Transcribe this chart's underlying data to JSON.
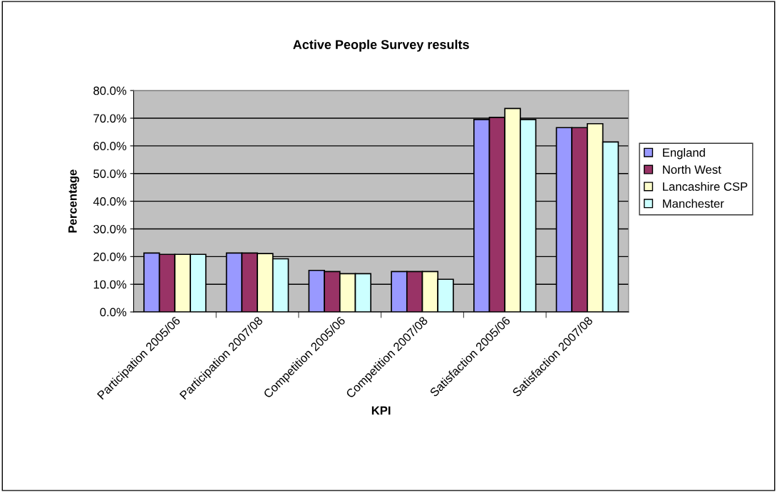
{
  "chart_data": {
    "type": "bar",
    "title": "Active People Survey results",
    "xlabel": "KPI",
    "ylabel": "Percentage",
    "categories": [
      "Participation 2005/06",
      "Participation 2007/08",
      "Competition 2005/06",
      "Competition 2007/08",
      "Satisfaction 2005/06",
      "Satisfaction 2007/08"
    ],
    "series": [
      {
        "name": "England",
        "color": "#9999ff",
        "values": [
          21.3,
          21.3,
          15.0,
          14.6,
          69.5,
          66.6
        ]
      },
      {
        "name": "North West",
        "color": "#993366",
        "values": [
          20.8,
          21.3,
          14.6,
          14.6,
          70.3,
          66.6
        ]
      },
      {
        "name": "Lancashire CSP",
        "color": "#ffffcc",
        "values": [
          20.8,
          21.1,
          13.8,
          14.6,
          73.5,
          68.0
        ]
      },
      {
        "name": "Manchester",
        "color": "#ccffff",
        "values": [
          20.8,
          19.2,
          13.8,
          11.8,
          69.5,
          61.4
        ]
      }
    ],
    "ylim": [
      0,
      80
    ],
    "yticks": [
      {
        "value": 0,
        "label": "0.0%"
      },
      {
        "value": 10,
        "label": "10.0%"
      },
      {
        "value": 20,
        "label": "20.0%"
      },
      {
        "value": 30,
        "label": "30.0%"
      },
      {
        "value": 40,
        "label": "40.0%"
      },
      {
        "value": 50,
        "label": "50.0%"
      },
      {
        "value": 60,
        "label": "60.0%"
      },
      {
        "value": 70,
        "label": "70.0%"
      },
      {
        "value": 80,
        "label": "80.0%"
      }
    ],
    "grid": "y",
    "legend": "right"
  }
}
